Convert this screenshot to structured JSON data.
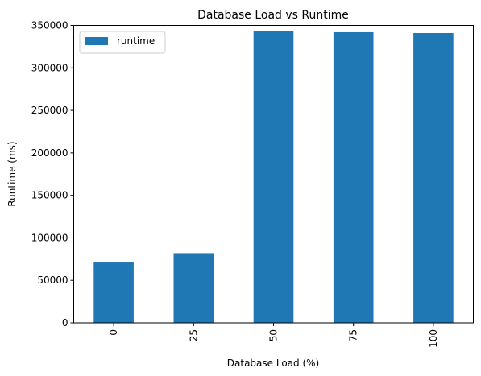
{
  "chart_data": {
    "type": "bar",
    "title": "Database Load vs Runtime",
    "xlabel": "Database Load (%)",
    "ylabel": "Runtime (ms)",
    "categories": [
      "0",
      "25",
      "50",
      "75",
      "100"
    ],
    "series": [
      {
        "name": "runtime",
        "values": [
          71000,
          82000,
          343000,
          342000,
          341000
        ]
      }
    ],
    "ylim": [
      0,
      350000
    ],
    "yticks": [
      0,
      50000,
      100000,
      150000,
      200000,
      250000,
      300000,
      350000
    ],
    "ytick_labels": [
      "0",
      "50000",
      "100000",
      "150000",
      "200000",
      "250000",
      "300000",
      "350000"
    ],
    "x_tick_rotation": "vertical",
    "grid": false,
    "legend": {
      "position": "upper-left"
    },
    "colors": {
      "bar": "#1f77b4"
    }
  }
}
